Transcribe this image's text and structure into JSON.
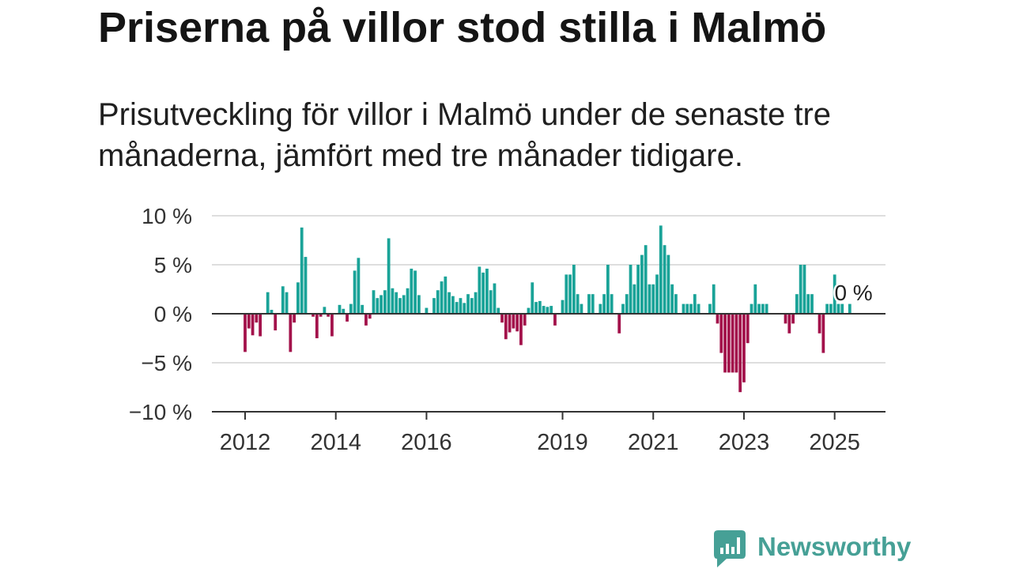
{
  "chart_data": {
    "type": "bar",
    "title": "Priserna på villor stod stilla i Malmö",
    "subtitle": "Prisutveckling för villor i Malmö under de senaste tre månaderna, jämfört med tre månader tidigare.",
    "x": [
      "2012-01",
      "2012-02",
      "2012-03",
      "2012-04",
      "2012-05",
      "2012-06",
      "2012-07",
      "2012-08",
      "2012-09",
      "2012-10",
      "2012-11",
      "2012-12",
      "2013-01",
      "2013-02",
      "2013-03",
      "2013-04",
      "2013-05",
      "2013-06",
      "2013-07",
      "2013-08",
      "2013-09",
      "2013-10",
      "2013-11",
      "2013-12",
      "2014-01",
      "2014-02",
      "2014-03",
      "2014-04",
      "2014-05",
      "2014-06",
      "2014-07",
      "2014-08",
      "2014-09",
      "2014-10",
      "2014-11",
      "2014-12",
      "2015-01",
      "2015-02",
      "2015-03",
      "2015-04",
      "2015-05",
      "2015-06",
      "2015-07",
      "2015-08",
      "2015-09",
      "2015-10",
      "2015-11",
      "2015-12",
      "2016-01",
      "2016-02",
      "2016-03",
      "2016-04",
      "2016-05",
      "2016-06",
      "2016-07",
      "2016-08",
      "2016-09",
      "2016-10",
      "2016-11",
      "2016-12",
      "2017-01",
      "2017-02",
      "2017-03",
      "2017-04",
      "2017-05",
      "2017-06",
      "2017-07",
      "2017-08",
      "2017-09",
      "2017-10",
      "2017-11",
      "2017-12",
      "2018-01",
      "2018-02",
      "2018-03",
      "2018-04",
      "2018-05",
      "2018-06",
      "2018-07",
      "2018-08",
      "2018-09",
      "2018-10",
      "2018-11",
      "2018-12",
      "2019-01",
      "2019-02",
      "2019-03",
      "2019-04",
      "2019-05",
      "2019-06",
      "2019-07",
      "2019-08",
      "2019-09",
      "2019-10",
      "2019-11",
      "2019-12",
      "2020-01",
      "2020-02",
      "2020-03",
      "2020-04",
      "2020-05",
      "2020-06",
      "2020-07",
      "2020-08",
      "2020-09",
      "2020-10",
      "2020-11",
      "2020-12",
      "2021-01",
      "2021-02",
      "2021-03",
      "2021-04",
      "2021-05",
      "2021-06",
      "2021-07",
      "2021-08",
      "2021-09",
      "2021-10",
      "2021-11",
      "2021-12",
      "2022-01",
      "2022-02",
      "2022-03",
      "2022-04",
      "2022-05",
      "2022-06",
      "2022-07",
      "2022-08",
      "2022-09",
      "2022-10",
      "2022-11",
      "2022-12",
      "2023-01",
      "2023-02",
      "2023-03",
      "2023-04",
      "2023-05",
      "2023-06",
      "2023-07",
      "2023-08",
      "2023-09",
      "2023-10",
      "2023-11",
      "2023-12",
      "2024-01",
      "2024-02",
      "2024-03",
      "2024-04",
      "2024-05",
      "2024-06",
      "2024-07",
      "2024-08",
      "2024-09",
      "2024-10",
      "2024-11",
      "2024-12",
      "2025-01",
      "2025-02",
      "2025-03",
      "2025-04",
      "2025-05",
      "2025-06"
    ],
    "values": [
      -3.9,
      -1.5,
      -2.2,
      -0.9,
      -2.3,
      0,
      2.2,
      0.4,
      -1.7,
      0,
      2.8,
      2.2,
      -3.9,
      -0.9,
      3.2,
      8.8,
      5.8,
      0,
      -0.3,
      -2.5,
      -0.3,
      0.7,
      -0.3,
      -2.3,
      0,
      0.9,
      0.5,
      -0.8,
      1.0,
      4.4,
      5.7,
      0.9,
      -1.2,
      -0.5,
      2.4,
      1.6,
      1.9,
      2.4,
      7.7,
      2.6,
      2.2,
      1.6,
      1.9,
      2.6,
      4.6,
      4.4,
      1.9,
      0,
      0.6,
      0,
      1.6,
      2.4,
      3.3,
      3.8,
      2.2,
      1.8,
      1.2,
      1.6,
      1.1,
      2.0,
      1.6,
      2.2,
      4.8,
      4.2,
      4.6,
      2.4,
      3.1,
      0.6,
      -0.9,
      -2.6,
      -1.9,
      -1.5,
      -1.8,
      -3.2,
      -1.2,
      0.6,
      3.2,
      1.2,
      1.3,
      0.8,
      0.7,
      0.8,
      -1.2,
      0,
      1.4,
      4,
      4,
      5,
      2,
      1,
      0,
      2,
      2,
      0,
      1,
      2,
      5,
      2,
      0,
      -2,
      1,
      2,
      5,
      3,
      5,
      6,
      7,
      3,
      3,
      4,
      9,
      7,
      6,
      3,
      2,
      0,
      1,
      1,
      1,
      2,
      1,
      0,
      0,
      1,
      3,
      -1,
      -4,
      -6,
      -6,
      -6,
      -6,
      -8,
      -7,
      -3,
      1,
      3,
      1,
      1,
      1,
      0,
      0,
      0,
      0,
      -1,
      -2,
      -1,
      2,
      5,
      5,
      2,
      2,
      0,
      -2,
      -4,
      1,
      1,
      4,
      1,
      1,
      0,
      1,
      0
    ],
    "ylim": [
      -10,
      10
    ],
    "yticks": [
      {
        "value": 10,
        "label": "10 %"
      },
      {
        "value": 5,
        "label": "5 %"
      },
      {
        "value": 0,
        "label": "0 %"
      },
      {
        "value": -5,
        "label": "−5 %"
      },
      {
        "value": -10,
        "label": "−10 %"
      }
    ],
    "xticks": [
      "2012",
      "2014",
      "2016",
      "2019",
      "2021",
      "2023",
      "2025"
    ],
    "grid": true,
    "colors": {
      "positive": "#1aa398",
      "negative": "#a3124b"
    },
    "annotations": [
      {
        "x": "2025-06",
        "y": 0,
        "text": "0 %"
      }
    ]
  },
  "branding": {
    "logo_text": "Newsworthy",
    "logo_icon": "chart-speech-bubble-icon",
    "color": "#46a096"
  }
}
